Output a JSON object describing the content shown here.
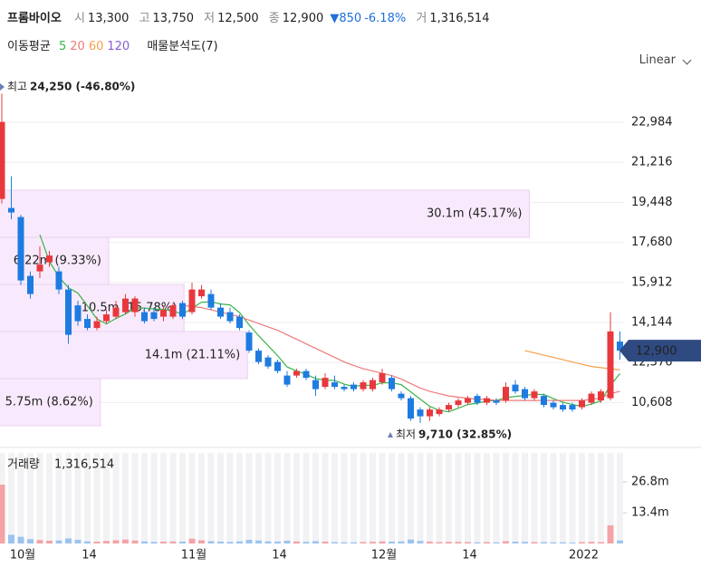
{
  "header": {
    "name": "프롬바이오",
    "open_label": "시",
    "open": "13,300",
    "high_label": "고",
    "high": "13,750",
    "low_label": "저",
    "low": "12,500",
    "close_label": "종",
    "close": "12,900",
    "change": "▼850",
    "change_pct": "-6.18%",
    "volume_label": "거",
    "volume": "1,316,514"
  },
  "indicators": {
    "ma_label": "이동평균",
    "profile_label": "매물분석도(7)"
  },
  "scale_mode": "Linear",
  "chart_data": [
    {
      "type": "candlestick",
      "categories": [
        null,
        null,
        "10월",
        null,
        null,
        null,
        null,
        null,
        null,
        "14",
        null,
        null,
        null,
        null,
        null,
        null,
        null,
        null,
        null,
        null,
        "11월",
        null,
        null,
        null,
        null,
        null,
        null,
        null,
        null,
        "14",
        null,
        null,
        null,
        null,
        null,
        null,
        null,
        null,
        null,
        null,
        "12월",
        null,
        null,
        null,
        null,
        null,
        null,
        null,
        null,
        "14",
        null,
        null,
        null,
        null,
        null,
        null,
        null,
        null,
        null,
        null,
        null,
        "2022",
        null,
        null,
        null,
        null
      ],
      "open": [
        19600,
        19200,
        18800,
        16200,
        16400,
        16800,
        16400,
        15600,
        14900,
        14300,
        13900,
        14200,
        14400,
        14600,
        14600,
        14600,
        14600,
        14400,
        14400,
        15000,
        14600,
        15300,
        15400,
        14800,
        14600,
        14400,
        13700,
        12900,
        12600,
        12400,
        11800,
        11800,
        12000,
        11600,
        11300,
        11500,
        11300,
        11400,
        11200,
        11200,
        11500,
        11700,
        11000,
        10800,
        10300,
        10000,
        10100,
        10300,
        10500,
        10600,
        10900,
        10600,
        10700,
        10700,
        11400,
        11200,
        10800,
        10900,
        10600,
        10500,
        10500,
        10400,
        10600,
        10700,
        10800,
        13300
      ],
      "high": [
        24250,
        20600,
        18900,
        16400,
        17500,
        17300,
        16600,
        15800,
        15100,
        14500,
        14400,
        14700,
        15100,
        15400,
        15300,
        14800,
        14800,
        14900,
        15000,
        15100,
        15900,
        15800,
        15600,
        15000,
        14800,
        14500,
        13800,
        13000,
        12700,
        12500,
        12000,
        12100,
        12100,
        11800,
        11900,
        11800,
        11400,
        11500,
        11600,
        11700,
        12100,
        11800,
        11100,
        10900,
        10400,
        10400,
        10400,
        10600,
        10800,
        10900,
        11000,
        10900,
        10800,
        11500,
        11600,
        11300,
        11200,
        11000,
        10700,
        10600,
        10600,
        10800,
        11100,
        11200,
        14600,
        13750
      ],
      "low": [
        19400,
        18700,
        15800,
        15200,
        16100,
        16600,
        15400,
        13200,
        14000,
        13800,
        13800,
        14100,
        14300,
        14500,
        14400,
        14100,
        14200,
        14200,
        14300,
        14300,
        14500,
        15200,
        14700,
        14300,
        14100,
        13800,
        12800,
        12300,
        12100,
        11900,
        11300,
        11700,
        11600,
        10900,
        11200,
        11200,
        11100,
        11100,
        11100,
        11100,
        11400,
        11100,
        10700,
        9800,
        9710,
        9800,
        10000,
        10200,
        10400,
        10500,
        10500,
        10500,
        10500,
        10600,
        11000,
        10700,
        10700,
        10400,
        10300,
        10200,
        10200,
        10300,
        10500,
        10600,
        10700,
        12500
      ],
      "close": [
        23000,
        19000,
        16000,
        15400,
        16700,
        17100,
        15600,
        13600,
        14200,
        13900,
        14200,
        14500,
        14800,
        15200,
        15200,
        14200,
        14300,
        14700,
        14900,
        14400,
        15600,
        15600,
        14800,
        14400,
        14200,
        13900,
        12900,
        12400,
        12200,
        12000,
        11400,
        12000,
        11700,
        11200,
        11700,
        11300,
        11200,
        11200,
        11500,
        11600,
        11900,
        11200,
        10800,
        9900,
        10000,
        10300,
        10300,
        10500,
        10700,
        10800,
        10600,
        10800,
        10600,
        11300,
        11100,
        10800,
        11100,
        10500,
        10400,
        10300,
        10300,
        10700,
        11000,
        11100,
        13750,
        12900
      ],
      "up_color": "#e8383d",
      "down_color": "#1e7be0",
      "series": [
        {
          "name": "5",
          "color": "#3cb44b",
          "values": [
            null,
            null,
            null,
            null,
            18020,
            16840,
            16160,
            15680,
            15440,
            14880,
            14300,
            14080,
            14320,
            14520,
            14780,
            14780,
            14740,
            14720,
            14660,
            14500,
            14780,
            15040,
            15060,
            14960,
            14920,
            14580,
            14040,
            13560,
            13120,
            12680,
            12180,
            12000,
            11860,
            11660,
            11600,
            11580,
            11420,
            11320,
            11380,
            11360,
            11480,
            11480,
            11400,
            11080,
            10760,
            10440,
            10260,
            10200,
            10360,
            10520,
            10580,
            10680,
            10700,
            10820,
            10880,
            10920,
            10980,
            10960,
            10780,
            10620,
            10520,
            10440,
            10540,
            10680,
            11370,
            11890
          ]
        },
        {
          "name": "20",
          "color": "#f07a7a",
          "values": [
            null,
            null,
            null,
            null,
            null,
            null,
            null,
            null,
            null,
            null,
            null,
            null,
            null,
            null,
            null,
            null,
            null,
            null,
            null,
            14900,
            14850,
            14800,
            14700,
            14600,
            14500,
            14400,
            14250,
            14100,
            13950,
            13800,
            13600,
            13400,
            13200,
            13000,
            12800,
            12600,
            12400,
            12250,
            12100,
            12000,
            11900,
            11800,
            11650,
            11450,
            11250,
            11100,
            11000,
            10900,
            10850,
            10800,
            10750,
            10750,
            10700,
            10700,
            10700,
            10700,
            10700,
            10700,
            10700,
            10700,
            10700,
            10700,
            10750,
            10800,
            11000,
            11100
          ]
        },
        {
          "name": "60",
          "color": "#f5a04a",
          "values": [
            null,
            null,
            null,
            null,
            null,
            null,
            null,
            null,
            null,
            null,
            null,
            null,
            null,
            null,
            null,
            null,
            null,
            null,
            null,
            null,
            null,
            null,
            null,
            null,
            null,
            null,
            null,
            null,
            null,
            null,
            null,
            null,
            null,
            null,
            null,
            null,
            null,
            null,
            null,
            null,
            null,
            null,
            null,
            null,
            null,
            null,
            null,
            null,
            null,
            null,
            null,
            null,
            null,
            null,
            null,
            12900,
            12800,
            12700,
            12600,
            12500,
            12400,
            12300,
            12200,
            12150,
            12100,
            12050
          ]
        },
        {
          "name": "120",
          "color": "#8a5cd1",
          "values": [
            null,
            null,
            null,
            null,
            null,
            null,
            null,
            null,
            null,
            null,
            null,
            null,
            null,
            null,
            null,
            null,
            null,
            null,
            null,
            null,
            null,
            null,
            null,
            null,
            null,
            null,
            null,
            null,
            null,
            null,
            null,
            null,
            null,
            null,
            null,
            null,
            null,
            null,
            null,
            null,
            null,
            null,
            null,
            null,
            null,
            null,
            null,
            null,
            null,
            null,
            null,
            null,
            null,
            null,
            null,
            null,
            null,
            null,
            null,
            null,
            null,
            null,
            null,
            null,
            null,
            null
          ]
        }
      ],
      "ylim": [
        8784,
        24984
      ],
      "yticks": [
        {
          "value": 10608,
          "label": "10,608"
        },
        {
          "value": 12376,
          "label": "12,376"
        },
        {
          "value": 14144,
          "label": "14,144"
        },
        {
          "value": 15912,
          "label": "15,912"
        },
        {
          "value": 17680,
          "label": "17,680"
        },
        {
          "value": 19448,
          "label": "19,448"
        },
        {
          "value": 21216,
          "label": "21,216"
        },
        {
          "value": 22984,
          "label": "22,984"
        }
      ],
      "grid": true,
      "annotations": {
        "max_label": "최고",
        "max_text": "24,250 (-46.80%)",
        "min_label": "최저",
        "min_text": "9,710 (32.85%)"
      },
      "price_tag": "12,900",
      "profile": {
        "bins": [
          9584,
          11664,
          13744,
          15824,
          17904,
          19984
        ],
        "values": [
          5.75,
          14.1,
          10.5,
          6.22,
          30.1
        ],
        "value_labels": [
          "5.75m (8.62%)",
          "14.1m (21.11%)",
          "10.5m (15.78%)",
          "6.22m (9.33%)",
          "30.1m (45.17%)"
        ],
        "color": "#f8eafc"
      }
    },
    {
      "type": "bar",
      "title": "거래량",
      "title_value": "1,316,514",
      "values": [
        25600000,
        3800000,
        2900000,
        1900000,
        1500000,
        1200000,
        1300000,
        2200000,
        1600000,
        900000,
        800000,
        1100000,
        1400000,
        1700000,
        1300000,
        900000,
        700000,
        800000,
        900000,
        800000,
        2100000,
        1400000,
        1000000,
        800000,
        700000,
        900000,
        1600000,
        1300000,
        900000,
        800000,
        1200000,
        900000,
        700000,
        1000000,
        800000,
        600000,
        500000,
        500000,
        600000,
        700000,
        900000,
        800000,
        900000,
        1700000,
        1100000,
        800000,
        600000,
        700000,
        700000,
        600000,
        500000,
        600000,
        500000,
        1000000,
        800000,
        700000,
        600000,
        600000,
        500000,
        500000,
        400000,
        600000,
        700000,
        600000,
        7900000,
        1316514
      ],
      "ylim": [
        0,
        39400000
      ],
      "yticks": [
        {
          "value": 13400000,
          "label": "13.4m"
        },
        {
          "value": 26800000,
          "label": "26.8m"
        }
      ]
    }
  ]
}
